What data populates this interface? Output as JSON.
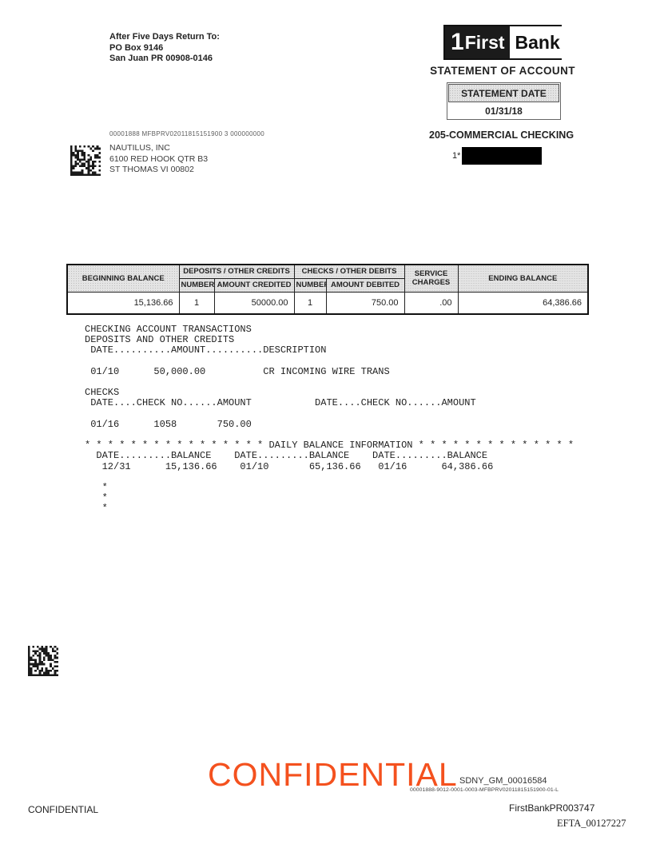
{
  "colors": {
    "watermark_orange": "#f4511e",
    "table_header_gray": "#e4e4e4",
    "redaction_black": "#000000"
  },
  "return_address": {
    "line1": "After Five Days Return To:",
    "line2": "PO Box 9146",
    "line3": "San Juan PR 00908-0146"
  },
  "logo": {
    "one": "1",
    "first": "First",
    "bank": "Bank"
  },
  "header": {
    "statement_of_account": "STATEMENT OF ACCOUNT",
    "statement_date_label": "STATEMENT DATE",
    "statement_date_value": "01/31/18",
    "account_type": "205-COMMERCIAL CHECKING",
    "account_number_prefix": "1*"
  },
  "mailing": {
    "processing_line": "00001888  MFBPRV02011815151900  3  000000000",
    "recipient_name": "NAUTILUS, INC",
    "recipient_address1": "6100 RED HOOK QTR B3",
    "recipient_address2": "ST THOMAS VI  00802"
  },
  "summary_table": {
    "headers": {
      "beginning_balance": "BEGINNING BALANCE",
      "deposits_group": "DEPOSITS / OTHER CREDITS",
      "checks_group": "CHECKS / OTHER DEBITS",
      "number_credits": "NUMBER",
      "amount_credited": "AMOUNT CREDITED",
      "number_debits": "NUMBER",
      "amount_debited": "AMOUNT DEBITED",
      "service_charges": "SERVICE CHARGES",
      "ending_balance": "ENDING BALANCE"
    },
    "values": {
      "beginning_balance": "15,136.66",
      "number_credits": "1",
      "amount_credited": "50000.00",
      "number_debits": "1",
      "amount_debited": "750.00",
      "service_charges": ".00",
      "ending_balance": "64,386.66"
    }
  },
  "transaction_listing_lines": [
    "CHECKING ACCOUNT TRANSACTIONS",
    "DEPOSITS AND OTHER CREDITS",
    " DATE..........AMOUNT..........DESCRIPTION",
    "",
    " 01/10      50,000.00          CR INCOMING WIRE TRANS",
    "",
    "CHECKS",
    " DATE....CHECK NO......AMOUNT           DATE....CHECK NO......AMOUNT",
    "",
    " 01/16      1058       750.00",
    "",
    "* * * * * * * * * * * * * * * * DAILY BALANCE INFORMATION * * * * * * * * * * * * * *",
    "  DATE.........BALANCE    DATE.........BALANCE    DATE.........BALANCE",
    "   12/31      15,136.66    01/10       65,136.66   01/16      64,386.66",
    "",
    "   *",
    "   *",
    "   *"
  ],
  "footer": {
    "watermark": "CONFIDENTIAL",
    "bates_sdny": "SDNY_GM_00016584",
    "doc_id_line": "00001888-9012-0001-0003-MFBPRV02011815151900-01-L",
    "confidential_label": "CONFIDENTIAL",
    "bates_firstbank": "FirstBankPR003747",
    "bates_efta": "EFTA_00127227"
  }
}
